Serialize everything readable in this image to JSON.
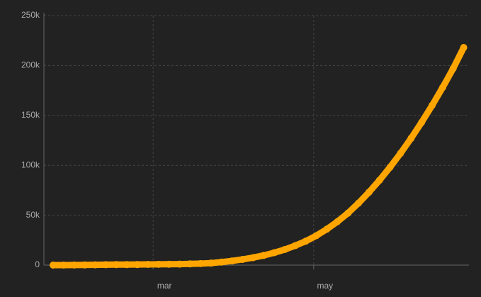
{
  "chart_data": {
    "type": "scatter",
    "x": [
      0,
      4,
      8,
      12,
      16,
      20,
      24,
      28,
      32,
      36,
      40,
      44,
      48,
      52,
      56,
      60,
      64,
      68,
      72,
      76,
      80,
      84,
      88,
      92,
      96,
      100,
      104,
      108,
      112,
      116,
      120,
      124,
      128,
      132,
      136,
      140,
      144,
      148,
      152,
      156
    ],
    "values": [
      0,
      0,
      100,
      200,
      300,
      400,
      500,
      500,
      600,
      700,
      800,
      900,
      1000,
      1200,
      1500,
      2000,
      3000,
      4200,
      5700,
      7500,
      9700,
      12400,
      15600,
      19500,
      24000,
      29500,
      36000,
      43500,
      52000,
      62000,
      73000,
      85000,
      98000,
      112000,
      127000,
      143000,
      160000,
      178000,
      197000,
      218000
    ],
    "color": "#ffa500",
    "xlim": [
      -3.5,
      158
    ],
    "xticks": [
      {
        "value": 38,
        "label": "mar"
      },
      {
        "value": 99,
        "label": "may"
      }
    ],
    "ylim": [
      0,
      250000
    ],
    "yticks": [
      {
        "value": 0,
        "label": "0"
      },
      {
        "value": 50000,
        "label": "50k"
      },
      {
        "value": 100000,
        "label": "100k"
      },
      {
        "value": 150000,
        "label": "150k"
      },
      {
        "value": 200000,
        "label": "200k"
      },
      {
        "value": 250000,
        "label": "250k"
      }
    ],
    "grid": true
  }
}
